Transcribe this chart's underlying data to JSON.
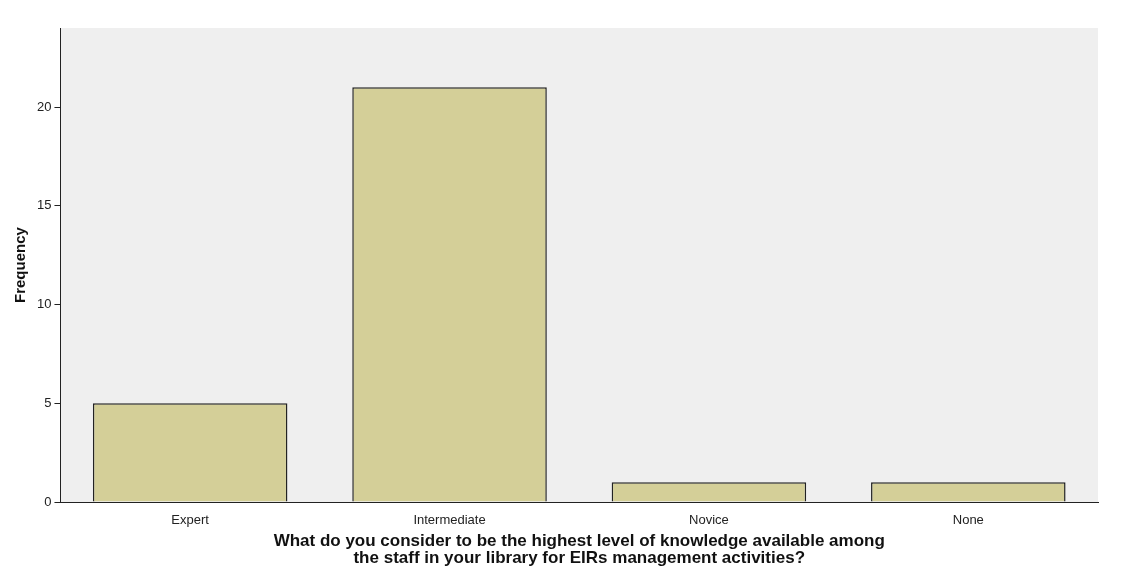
{
  "chart_data": {
    "type": "bar",
    "xlabel": "What do you consider to be the highest level of knowledge available among\nthe staff in your library for EIRs management activities?",
    "ylabel": "Frequency",
    "categories": [
      "Expert",
      "Intermediate",
      "Novice",
      "None"
    ],
    "values": [
      5,
      21,
      1,
      1
    ],
    "color": "#d4cf98",
    "ylim": [
      0,
      24
    ],
    "yticks": [
      0,
      5,
      10,
      15,
      20
    ],
    "grid": false
  }
}
